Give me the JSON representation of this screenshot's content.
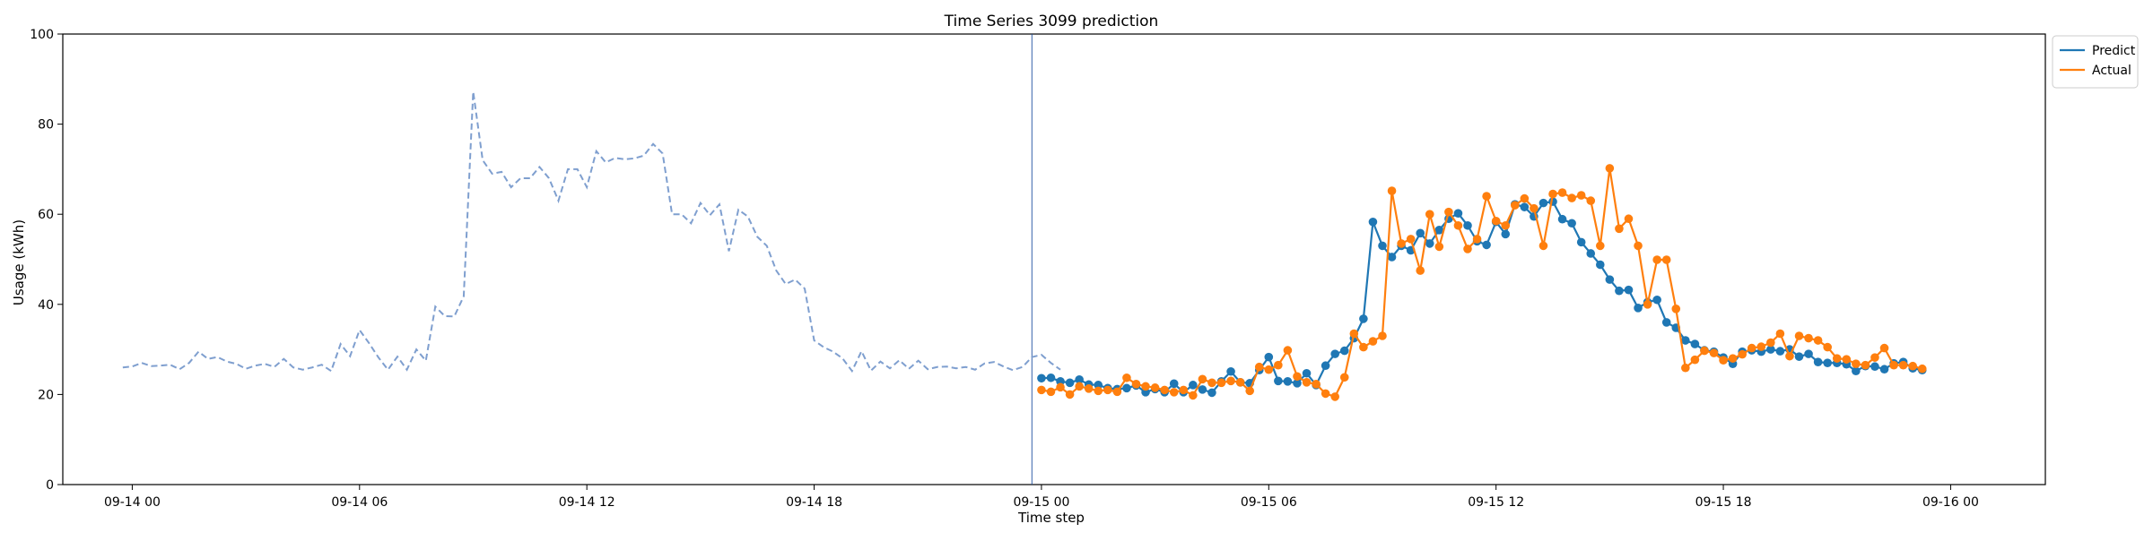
{
  "chart_data": {
    "type": "line",
    "title": "Time Series 3099 prediction",
    "xlabel": "Time step",
    "ylabel": "Usage (kWh)",
    "ylim": [
      0,
      100
    ],
    "xlim": [
      "09-13 22:10",
      "09-16 02:30"
    ],
    "x_unit": "timestamp (MM-DD HH:MM), 15-minute intervals",
    "x_ticks": [
      "09-14 00",
      "09-14 06",
      "09-14 12",
      "09-14 18",
      "09-15 00",
      "09-15 06",
      "09-15 12",
      "09-15 18",
      "09-16 00"
    ],
    "x_tick_values": [
      "09-14 00:00",
      "09-14 06:00",
      "09-14 12:00",
      "09-14 18:00",
      "09-15 00:00",
      "09-15 06:00",
      "09-15 12:00",
      "09-15 18:00",
      "09-16 00:00"
    ],
    "y_ticks": [
      0,
      20,
      40,
      60,
      80,
      100
    ],
    "grid": false,
    "legend_position": "outside-top-right",
    "vertical_marker": {
      "x": "09-14 23:45",
      "color": "#1f4fa0"
    },
    "history": {
      "style": "dashed",
      "color": "#7f9fcf",
      "start": "09-13 23:45",
      "interval_minutes": 15,
      "values": [
        26,
        26.2,
        27,
        26.3,
        26.4,
        26.6,
        25.6,
        27,
        29.5,
        27.9,
        28.3,
        27.3,
        26.8,
        25.7,
        26.4,
        26.8,
        26.1,
        27.9,
        26,
        25.5,
        26,
        26.6,
        25.2,
        31.2,
        28.5,
        34.3,
        31.4,
        28.2,
        25.5,
        28.4,
        25.5,
        30,
        27.5,
        39.5,
        37.4,
        37.3,
        41.8,
        87.2,
        72,
        69,
        69.4,
        66,
        68,
        68,
        70.5,
        68,
        63,
        70,
        70,
        66,
        74,
        71.5,
        72.5,
        72.2,
        72.4,
        73,
        75.6,
        73.5,
        60,
        60,
        58,
        62.5,
        59.8,
        62.2,
        51.8,
        61,
        59.5,
        55,
        53,
        47.5,
        44.5,
        45.5,
        43.5,
        32,
        30.5,
        29.5,
        28,
        25.2,
        29.6,
        25.3,
        27.3,
        25.8,
        27.6,
        25.7,
        27.5,
        25.6,
        26.1,
        26.2,
        25.8,
        26.1,
        25.5,
        26.9,
        27.2,
        26.2,
        25.4,
        26.1,
        28.3,
        28.8,
        27,
        25.5
      ]
    },
    "forecast_start": "09-15 00:00",
    "forecast_interval_minutes": 15,
    "series": [
      {
        "name": "Predict",
        "color": "#1f77b4",
        "marker": "circle",
        "values": [
          23.6,
          23.7,
          22.9,
          22.6,
          23.3,
          22.2,
          22.1,
          21.4,
          21.2,
          21.4,
          22,
          20.5,
          21.2,
          20.5,
          22.4,
          20.5,
          22.1,
          21.1,
          20.4,
          22.9,
          25.1,
          22.7,
          22.5,
          25.4,
          28.3,
          23,
          22.9,
          22.5,
          24.7,
          22.1,
          26.4,
          29,
          29.7,
          32.5,
          36.8,
          58.3,
          53,
          50.5,
          53,
          52,
          55.8,
          53.5,
          56.5,
          59,
          60.2,
          57.5,
          54,
          53.2,
          58.3,
          55.6,
          62.2,
          61.6,
          59.5,
          62.5,
          62.8,
          58.9,
          58,
          53.8,
          51.3,
          48.8,
          45.5,
          43,
          43.2,
          39.2,
          40.5,
          41,
          36,
          34.8,
          32,
          31.2,
          29.8,
          29.5,
          28.2,
          26.8,
          29.5,
          29.8,
          29.5,
          30,
          29.6,
          30,
          28.4,
          29,
          27.2,
          27,
          27,
          26.7,
          25.2,
          26.3,
          26.2,
          25.6,
          26.9,
          27.2,
          25.8,
          25.4
        ]
      },
      {
        "name": "Actual",
        "color": "#ff7f0e",
        "marker": "circle",
        "values": [
          21,
          20.6,
          21.6,
          20,
          21.8,
          21.3,
          20.8,
          21,
          20.6,
          23.7,
          22.3,
          21.8,
          21.5,
          21,
          20.5,
          21,
          19.8,
          23.4,
          22.6,
          22.6,
          23,
          22.7,
          20.8,
          26.1,
          25.5,
          26.5,
          29.8,
          24,
          22.7,
          22.3,
          20.2,
          19.5,
          23.8,
          33.5,
          30.5,
          31.8,
          33,
          65.2,
          53.5,
          54.5,
          47.5,
          60,
          52.8,
          60.5,
          57.5,
          52.3,
          54.5,
          64,
          58.5,
          57.5,
          62,
          63.5,
          61.3,
          53,
          64.5,
          64.8,
          63.6,
          64.2,
          63,
          53,
          70.2,
          56.8,
          59,
          53,
          40,
          49.9,
          49.9,
          39,
          25.9,
          27.7,
          29.7,
          29.2,
          27.6,
          28,
          28.9,
          30.3,
          30.6,
          31.5,
          33.5,
          28.5,
          33,
          32.5,
          32,
          30.5,
          28,
          27.8,
          26.8,
          26.5,
          28.2,
          30.3,
          26.5,
          26.5,
          26.3,
          25.7
        ]
      }
    ]
  }
}
